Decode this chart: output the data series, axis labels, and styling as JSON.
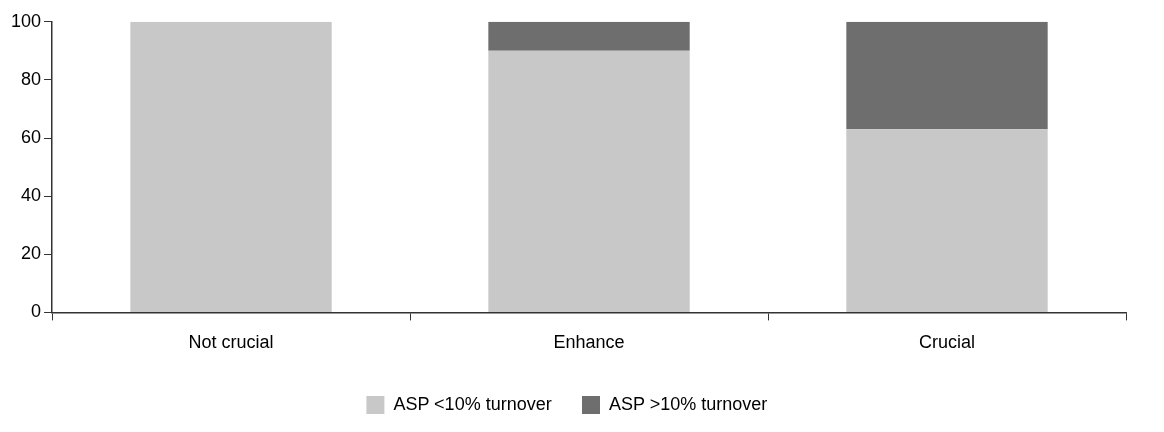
{
  "chart_data": {
    "type": "bar",
    "stacked": true,
    "categories": [
      "Not crucial",
      "Enhance",
      "Crucial"
    ],
    "series": [
      {
        "name": "ASP <10% turnover",
        "color": "#c8c8c8",
        "values": [
          100,
          90,
          63
        ]
      },
      {
        "name": "ASP >10% turnover",
        "color": "#6e6e6e",
        "values": [
          0,
          10,
          37
        ]
      }
    ],
    "ylim": [
      0,
      100
    ],
    "yticks": [
      0,
      20,
      40,
      60,
      80,
      100
    ],
    "grid": false,
    "legend": "bottom"
  }
}
